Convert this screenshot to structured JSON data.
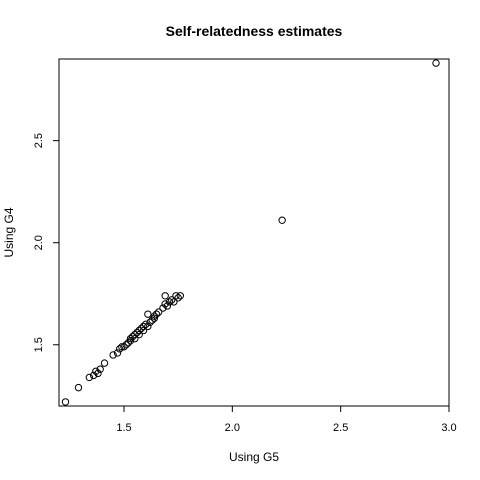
{
  "chart_data": {
    "type": "scatter",
    "title": "Self-relatedness estimates",
    "xlabel": "Using G5",
    "ylabel": "Using G4",
    "xlim": [
      1.2,
      3.0
    ],
    "ylim": [
      1.2,
      2.9
    ],
    "xticks": [
      1.5,
      2.0,
      2.5,
      3.0
    ],
    "yticks": [
      1.5,
      2.0,
      2.5
    ],
    "xtick_labels": [
      "1.5",
      "2.0",
      "2.5",
      "3.0"
    ],
    "ytick_labels": [
      "1.5",
      "2.0",
      "2.5"
    ],
    "grid": false,
    "point_color": "#000000",
    "points": [
      [
        1.23,
        1.22
      ],
      [
        1.29,
        1.29
      ],
      [
        1.34,
        1.34
      ],
      [
        1.36,
        1.35
      ],
      [
        1.37,
        1.37
      ],
      [
        1.38,
        1.36
      ],
      [
        1.39,
        1.38
      ],
      [
        1.41,
        1.41
      ],
      [
        1.45,
        1.45
      ],
      [
        1.47,
        1.46
      ],
      [
        1.48,
        1.48
      ],
      [
        1.49,
        1.49
      ],
      [
        1.5,
        1.49
      ],
      [
        1.51,
        1.5
      ],
      [
        1.52,
        1.51
      ],
      [
        1.53,
        1.52
      ],
      [
        1.53,
        1.53
      ],
      [
        1.54,
        1.54
      ],
      [
        1.55,
        1.53
      ],
      [
        1.55,
        1.55
      ],
      [
        1.56,
        1.56
      ],
      [
        1.57,
        1.55
      ],
      [
        1.57,
        1.57
      ],
      [
        1.58,
        1.58
      ],
      [
        1.59,
        1.57
      ],
      [
        1.59,
        1.59
      ],
      [
        1.6,
        1.6
      ],
      [
        1.61,
        1.59
      ],
      [
        1.61,
        1.65
      ],
      [
        1.62,
        1.61
      ],
      [
        1.63,
        1.62
      ],
      [
        1.64,
        1.63
      ],
      [
        1.64,
        1.64
      ],
      [
        1.65,
        1.65
      ],
      [
        1.66,
        1.66
      ],
      [
        1.68,
        1.68
      ],
      [
        1.69,
        1.74
      ],
      [
        1.69,
        1.7
      ],
      [
        1.7,
        1.69
      ],
      [
        1.71,
        1.71
      ],
      [
        1.72,
        1.72
      ],
      [
        1.73,
        1.71
      ],
      [
        1.74,
        1.74
      ],
      [
        1.75,
        1.73
      ],
      [
        1.76,
        1.74
      ],
      [
        2.23,
        2.11
      ],
      [
        2.94,
        2.88
      ]
    ]
  }
}
